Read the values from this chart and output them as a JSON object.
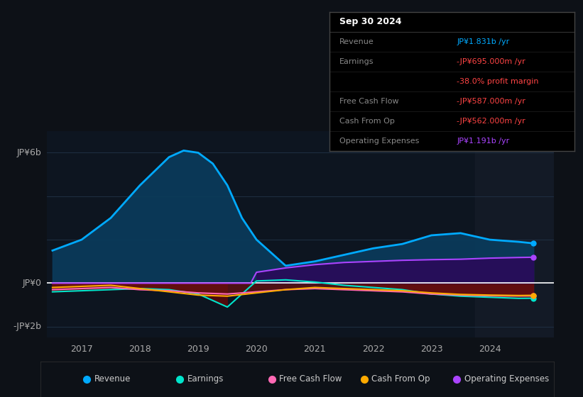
{
  "bg_color": "#0d1117",
  "plot_bg_color": "#0d1520",
  "chart_bg_right": "#131a26",
  "grid_color": "#1e2d40",
  "zero_line_color": "#ffffff",
  "ylabel_top": "JP¥6b",
  "ylabel_bottom": "-JP¥2b",
  "ylabel_mid": "JP¥0",
  "xlim_start": 2016.4,
  "xlim_end": 2025.1,
  "ylim_min": -2500000000,
  "ylim_max": 7000000000,
  "y_ticks_vals": [
    6000000000,
    0,
    -2000000000
  ],
  "y_ticks_labels": [
    "JP¥6b",
    "JP¥0",
    "-JP¥2b"
  ],
  "x_ticks": [
    2017,
    2018,
    2019,
    2020,
    2021,
    2022,
    2023,
    2024
  ],
  "revenue_color": "#00aaff",
  "revenue_fill": "#0a3a5a",
  "earnings_color": "#00e5cc",
  "fcf_color": "#ff69b4",
  "cashop_color": "#ffaa00",
  "opex_color": "#aa44ff",
  "legend_items": [
    {
      "label": "Revenue",
      "color": "#00aaff"
    },
    {
      "label": "Earnings",
      "color": "#00e5cc"
    },
    {
      "label": "Free Cash Flow",
      "color": "#ff69b4"
    },
    {
      "label": "Cash From Op",
      "color": "#ffaa00"
    },
    {
      "label": "Operating Expenses",
      "color": "#aa44ff"
    }
  ],
  "tooltip_title": "Sep 30 2024",
  "tooltip_bg": "#000000",
  "tooltip_border": "#444444",
  "revenue": {
    "x": [
      2016.5,
      2017.0,
      2017.5,
      2018.0,
      2018.5,
      2018.75,
      2019.0,
      2019.25,
      2019.5,
      2019.75,
      2020.0,
      2020.5,
      2021.0,
      2021.5,
      2022.0,
      2022.5,
      2023.0,
      2023.5,
      2024.0,
      2024.5,
      2024.75
    ],
    "y": [
      1500000000,
      2000000000,
      3000000000,
      4500000000,
      5800000000,
      6100000000,
      6000000000,
      5500000000,
      4500000000,
      3000000000,
      2000000000,
      800000000,
      1000000000,
      1300000000,
      1600000000,
      1800000000,
      2200000000,
      2300000000,
      2000000000,
      1900000000,
      1831000000
    ]
  },
  "earnings": {
    "x": [
      2016.5,
      2017.0,
      2017.5,
      2018.0,
      2018.5,
      2019.0,
      2019.5,
      2020.0,
      2020.5,
      2021.0,
      2021.5,
      2022.0,
      2022.5,
      2023.0,
      2023.5,
      2024.0,
      2024.5,
      2024.75
    ],
    "y": [
      -400000000,
      -350000000,
      -300000000,
      -250000000,
      -300000000,
      -500000000,
      -1100000000,
      100000000,
      150000000,
      50000000,
      -100000000,
      -200000000,
      -300000000,
      -500000000,
      -600000000,
      -650000000,
      -700000000,
      -695000000
    ]
  },
  "fcf": {
    "x": [
      2016.5,
      2017.0,
      2017.5,
      2018.0,
      2018.5,
      2019.0,
      2019.5,
      2020.0,
      2020.5,
      2021.0,
      2021.5,
      2022.0,
      2022.5,
      2023.0,
      2023.5,
      2024.0,
      2024.5,
      2024.75
    ],
    "y": [
      -300000000,
      -250000000,
      -200000000,
      -300000000,
      -350000000,
      -450000000,
      -500000000,
      -400000000,
      -300000000,
      -250000000,
      -300000000,
      -350000000,
      -400000000,
      -500000000,
      -550000000,
      -580000000,
      -590000000,
      -587000000
    ]
  },
  "cashop": {
    "x": [
      2016.5,
      2017.0,
      2017.5,
      2018.0,
      2018.5,
      2019.0,
      2019.5,
      2020.0,
      2020.5,
      2021.0,
      2021.5,
      2022.0,
      2022.5,
      2023.0,
      2023.5,
      2024.0,
      2024.5,
      2024.75
    ],
    "y": [
      -200000000,
      -150000000,
      -100000000,
      -250000000,
      -400000000,
      -550000000,
      -600000000,
      -450000000,
      -300000000,
      -200000000,
      -250000000,
      -300000000,
      -350000000,
      -450000000,
      -520000000,
      -550000000,
      -570000000,
      -562000000
    ]
  },
  "opex": {
    "x": [
      2016.5,
      2017.0,
      2017.5,
      2018.0,
      2018.5,
      2019.0,
      2019.5,
      2019.9,
      2020.0,
      2020.5,
      2021.0,
      2021.5,
      2022.0,
      2022.5,
      2023.0,
      2023.5,
      2024.0,
      2024.5,
      2024.75
    ],
    "y": [
      0,
      0,
      0,
      0,
      0,
      0,
      0,
      0,
      500000000,
      700000000,
      850000000,
      950000000,
      1000000000,
      1050000000,
      1080000000,
      1100000000,
      1150000000,
      1180000000,
      1191000000
    ]
  }
}
